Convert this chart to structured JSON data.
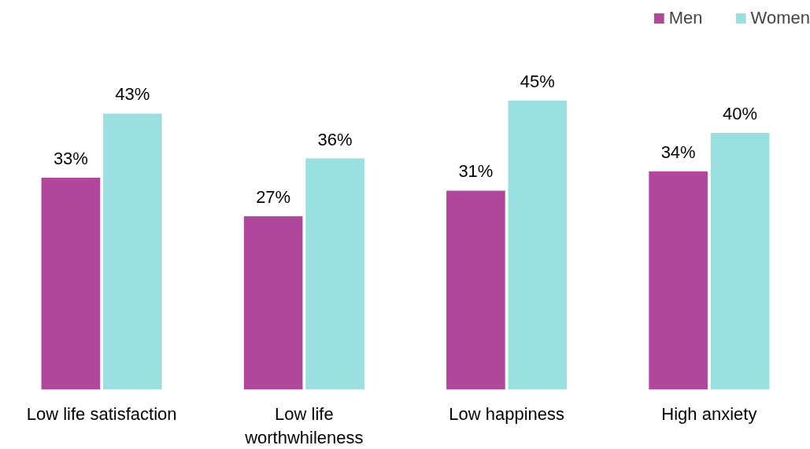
{
  "chart_data": {
    "type": "bar",
    "categories": [
      "Low life satisfaction",
      "Low life worthwhileness",
      "Low happiness",
      "High anxiety"
    ],
    "series": [
      {
        "name": "Men",
        "color": "#b0479a",
        "values": [
          33,
          27,
          31,
          34
        ],
        "value_labels": [
          "33%",
          "27%",
          "31%",
          "34%"
        ]
      },
      {
        "name": "Women",
        "color": "#9ae0e0",
        "values": [
          43,
          36,
          45,
          40
        ],
        "value_labels": [
          "43%",
          "36%",
          "45%",
          "40%"
        ]
      }
    ],
    "legend": "top right",
    "tick_labels": "x"
  }
}
